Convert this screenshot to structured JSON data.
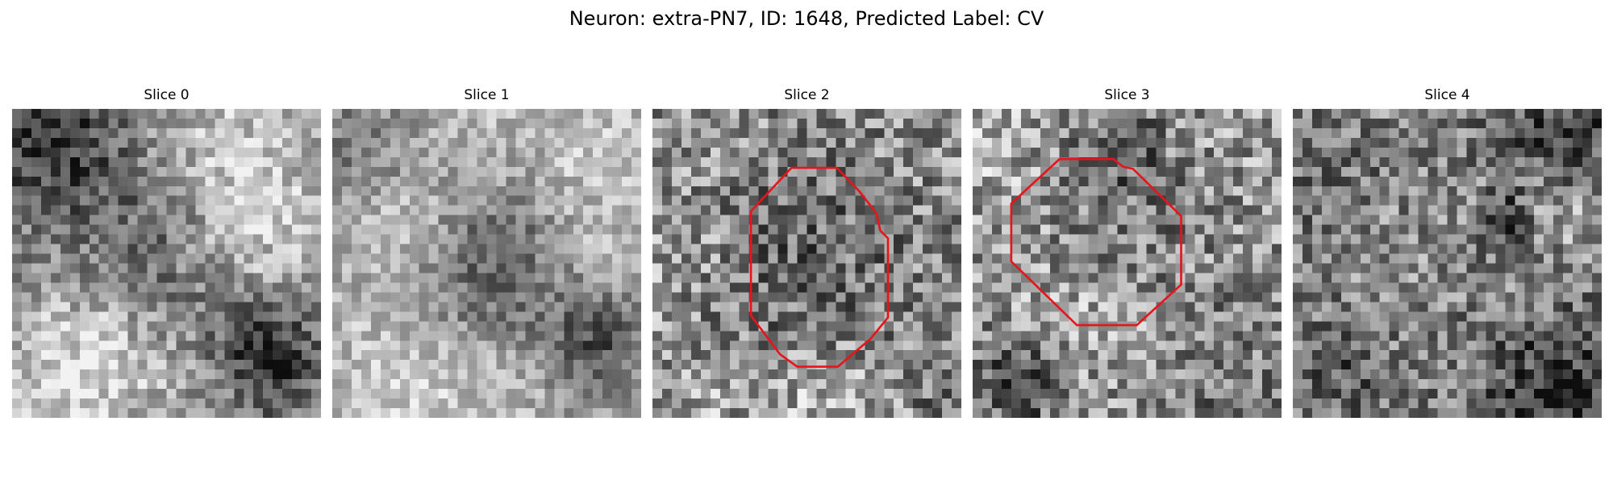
{
  "figure": {
    "title": "Neuron: extra-PN7, ID: 1648, Predicted Label: CV"
  },
  "colors": {
    "background": "#ffffff",
    "contour": "#e8141b"
  },
  "panels": [
    {
      "title": "Slice 0",
      "has_contour": false
    },
    {
      "title": "Slice 1",
      "has_contour": false
    },
    {
      "title": "Slice 2",
      "has_contour": true
    },
    {
      "title": "Slice 3",
      "has_contour": true
    },
    {
      "title": "Slice 4",
      "has_contour": false
    }
  ]
}
